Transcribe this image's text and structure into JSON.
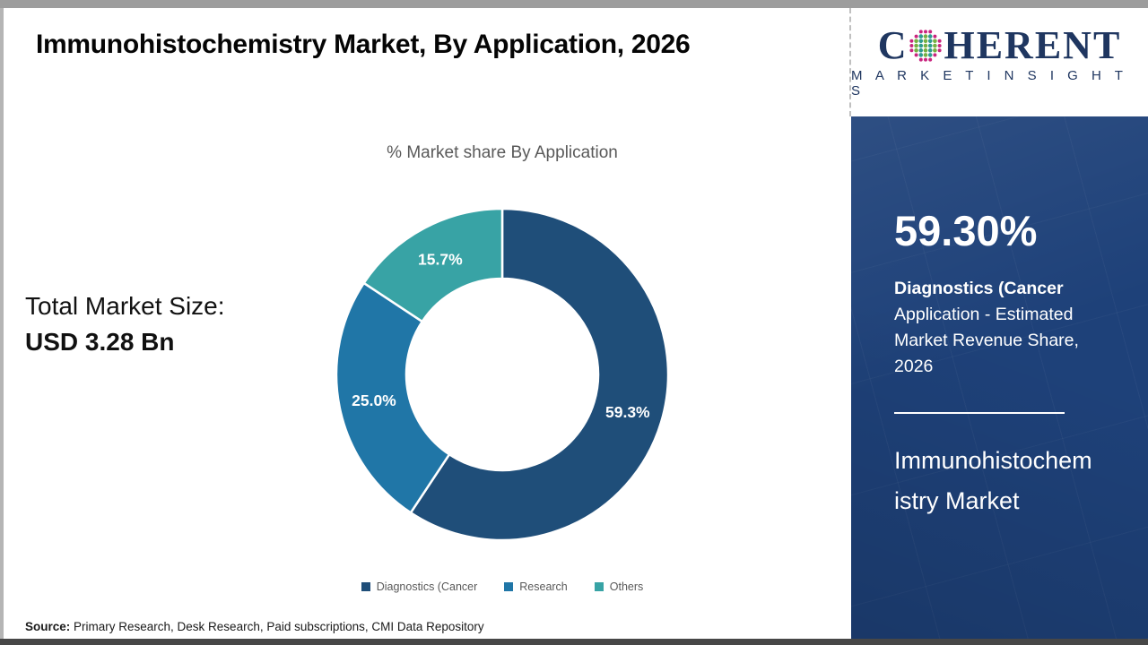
{
  "title": "Immunohistochemistry Market, By Application, 2026",
  "chart_data": {
    "type": "pie",
    "variant": "donut",
    "title": "% Market share By Application",
    "series": [
      {
        "name": "Diagnostics (Cancer",
        "value": 59.3,
        "color": "#1f4e79",
        "label": "59.3%"
      },
      {
        "name": "Research",
        "value": 25.0,
        "color": "#2076a7",
        "label": "25.0%"
      },
      {
        "name": "Others",
        "value": 15.7,
        "color": "#38a3a5",
        "label": "15.7%"
      }
    ],
    "start_angle_deg": 0,
    "direction": "clockwise",
    "legend_position": "bottom",
    "label_color": "#ffffff"
  },
  "total_market": {
    "label": "Total Market Size:",
    "value": "USD 3.28 Bn"
  },
  "sidebar": {
    "logo": {
      "text_c": "C",
      "text_rest": "HERENT",
      "tagline": "M A R K E T   I N S I G H T S",
      "globe_icon": "dotted-globe",
      "navy": "#1f3660",
      "dot_colors": [
        "#c9257f",
        "#2e9c8f",
        "#76b043"
      ]
    },
    "stat_value": "59.30%",
    "stat_label_bold": "Diagnostics (Cancer",
    "stat_label_rest": " Application - Estimated Market Revenue Share, 2026",
    "market_name": "Immunohistochemistry Market",
    "background_color": "#1e4179"
  },
  "footer": {
    "source_label": "Source:",
    "source_text": " Primary Research, Desk Research, Paid subscriptions, CMI Data Repository"
  }
}
